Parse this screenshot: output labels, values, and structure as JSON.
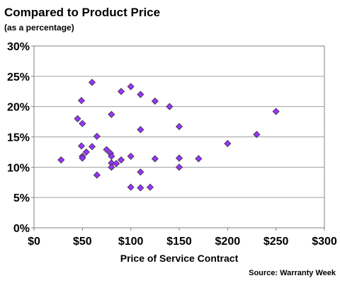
{
  "chart_data": {
    "type": "scatter",
    "title": "Compared to Product Price",
    "subtitle": "(as a percentage)",
    "xlabel": "Price of Service Contract",
    "ylabel": "",
    "source": "Source: Warranty Week",
    "xlim": [
      0,
      300
    ],
    "ylim": [
      0,
      30
    ],
    "x_ticks": [
      0,
      50,
      100,
      150,
      200,
      250,
      300
    ],
    "x_tick_labels": [
      "$0",
      "$50",
      "$100",
      "$150",
      "$200",
      "$250",
      "$300"
    ],
    "y_ticks": [
      0,
      5,
      10,
      15,
      20,
      25,
      30
    ],
    "y_tick_labels": [
      "0%",
      "5%",
      "10%",
      "15%",
      "20%",
      "25%",
      "30%"
    ],
    "grid": "horizontal",
    "marker_color": "#9933ff",
    "points": [
      {
        "x": 28,
        "y": 11.2
      },
      {
        "x": 45,
        "y": 18.0
      },
      {
        "x": 49,
        "y": 21.0
      },
      {
        "x": 50,
        "y": 17.2
      },
      {
        "x": 49,
        "y": 13.5
      },
      {
        "x": 50,
        "y": 11.8
      },
      {
        "x": 50,
        "y": 11.5
      },
      {
        "x": 54,
        "y": 12.5
      },
      {
        "x": 60,
        "y": 24.0
      },
      {
        "x": 60,
        "y": 13.4
      },
      {
        "x": 65,
        "y": 15.1
      },
      {
        "x": 65,
        "y": 8.7
      },
      {
        "x": 75,
        "y": 12.9
      },
      {
        "x": 79,
        "y": 12.3
      },
      {
        "x": 80,
        "y": 11.8
      },
      {
        "x": 80,
        "y": 10.7
      },
      {
        "x": 80,
        "y": 10.0
      },
      {
        "x": 80,
        "y": 18.7
      },
      {
        "x": 85,
        "y": 10.6
      },
      {
        "x": 90,
        "y": 11.2
      },
      {
        "x": 90,
        "y": 22.5
      },
      {
        "x": 100,
        "y": 23.3
      },
      {
        "x": 100,
        "y": 11.8
      },
      {
        "x": 100,
        "y": 6.7
      },
      {
        "x": 110,
        "y": 22.0
      },
      {
        "x": 110,
        "y": 16.2
      },
      {
        "x": 110,
        "y": 9.2
      },
      {
        "x": 110,
        "y": 6.6
      },
      {
        "x": 120,
        "y": 6.7
      },
      {
        "x": 125,
        "y": 20.9
      },
      {
        "x": 125,
        "y": 11.4
      },
      {
        "x": 140,
        "y": 20.0
      },
      {
        "x": 150,
        "y": 16.7
      },
      {
        "x": 150,
        "y": 11.5
      },
      {
        "x": 150,
        "y": 10.0
      },
      {
        "x": 170,
        "y": 11.4
      },
      {
        "x": 200,
        "y": 13.9
      },
      {
        "x": 230,
        "y": 15.4
      },
      {
        "x": 250,
        "y": 19.2
      }
    ]
  }
}
